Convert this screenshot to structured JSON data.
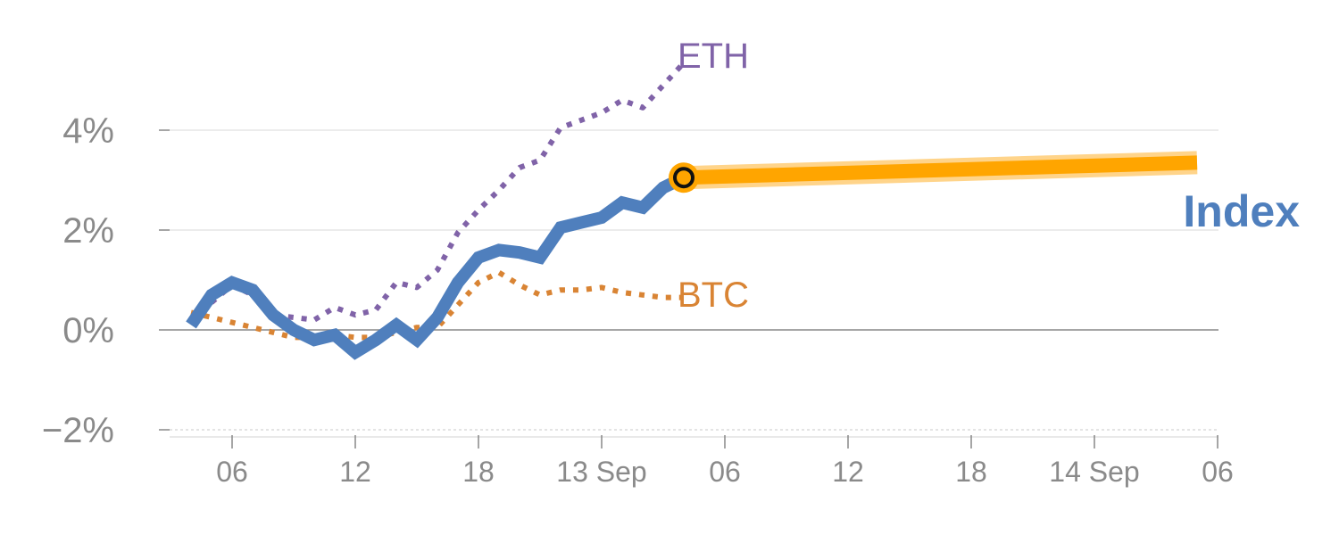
{
  "colors": {
    "index": "#4f7fbd",
    "eth": "#8063a8",
    "btc": "#d98434",
    "projection": "#ffa500",
    "projection_halo": "#ffd48a",
    "axis_text": "#8a8a8a",
    "grid": "#e6e6e6",
    "zero_line": "#888888"
  },
  "chart_data": {
    "type": "line",
    "y_tick_labels": [
      "4%",
      "2%",
      "0%",
      "−2%"
    ],
    "y_ticks": [
      4,
      2,
      0,
      -2
    ],
    "ylim": [
      -2,
      4
    ],
    "x_tick_labels": [
      "06",
      "12",
      "18",
      "13 Sep",
      "06",
      "12",
      "18",
      "14 Sep",
      "06"
    ],
    "x_ticks_hours": [
      6,
      12,
      18,
      24,
      30,
      36,
      42,
      48,
      54
    ],
    "xlim_hours": [
      3,
      54
    ],
    "grid": "horizontal",
    "series": [
      {
        "name": "Index",
        "style": "solid-thick",
        "x": [
          4,
          5,
          6,
          7,
          8,
          9,
          10,
          11,
          12,
          13,
          14,
          15,
          16,
          17,
          18,
          19,
          20,
          21,
          22,
          23,
          24,
          25,
          26,
          27,
          28
        ],
        "y": [
          0.1,
          0.7,
          0.95,
          0.8,
          0.3,
          0.0,
          -0.2,
          -0.1,
          -0.45,
          -0.2,
          0.1,
          -0.2,
          0.25,
          0.95,
          1.45,
          1.6,
          1.55,
          1.45,
          2.05,
          2.15,
          2.25,
          2.55,
          2.45,
          2.85,
          3.05
        ]
      },
      {
        "name": "ETH",
        "style": "dotted",
        "x": [
          4,
          5,
          6,
          7,
          8,
          9,
          10,
          11,
          12,
          13,
          14,
          15,
          16,
          17,
          18,
          19,
          20,
          21,
          22,
          23,
          24,
          25,
          26,
          27,
          28
        ],
        "y": [
          0.2,
          0.55,
          0.9,
          0.7,
          0.3,
          0.25,
          0.2,
          0.45,
          0.3,
          0.4,
          0.95,
          0.85,
          1.2,
          1.95,
          2.4,
          2.8,
          3.25,
          3.4,
          4.05,
          4.2,
          4.35,
          4.6,
          4.45,
          4.9,
          5.35
        ]
      },
      {
        "name": "BTC",
        "style": "dotted",
        "x": [
          4,
          5,
          6,
          7,
          8,
          9,
          10,
          11,
          12,
          13,
          14,
          15,
          16,
          17,
          18,
          19,
          20,
          21,
          22,
          23,
          24,
          25,
          26,
          27,
          28
        ],
        "y": [
          0.35,
          0.25,
          0.15,
          0.05,
          -0.05,
          -0.15,
          -0.15,
          -0.1,
          -0.15,
          -0.15,
          -0.05,
          0.05,
          0.05,
          0.5,
          0.95,
          1.15,
          0.9,
          0.7,
          0.8,
          0.8,
          0.85,
          0.75,
          0.7,
          0.65,
          0.65
        ]
      }
    ],
    "projection": {
      "x": [
        28,
        53
      ],
      "y": [
        3.05,
        3.35
      ]
    }
  },
  "labels": {
    "eth": "ETH",
    "btc": "BTC",
    "index": "Index"
  }
}
